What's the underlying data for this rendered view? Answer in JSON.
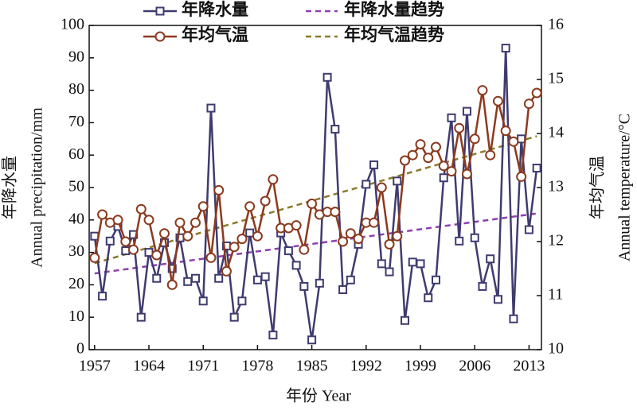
{
  "chart_data": {
    "type": "line",
    "xlabel": "年份  Year",
    "ylabel": [
      "年降水量",
      "Annual precipitation/mm"
    ],
    "y2label": [
      "年均气温",
      "Annual temperature/°C"
    ],
    "x": [
      1957,
      1958,
      1959,
      1960,
      1961,
      1962,
      1963,
      1964,
      1965,
      1966,
      1967,
      1968,
      1969,
      1970,
      1971,
      1972,
      1973,
      1974,
      1975,
      1976,
      1977,
      1978,
      1979,
      1980,
      1981,
      1982,
      1983,
      1984,
      1985,
      1986,
      1987,
      1988,
      1989,
      1990,
      1991,
      1992,
      1993,
      1994,
      1995,
      1996,
      1997,
      1998,
      1999,
      2000,
      2001,
      2002,
      2003,
      2004,
      2005,
      2006,
      2007,
      2008,
      2009,
      2010,
      2011,
      2012,
      2013,
      2014
    ],
    "series": [
      {
        "name": "年降水量",
        "color": "#3f3b6f",
        "marker": "square",
        "values": [
          35,
          16.5,
          33.5,
          38,
          30.5,
          35.5,
          10,
          30,
          22,
          33,
          25,
          34.5,
          21,
          22,
          15,
          74.5,
          22,
          32,
          10,
          15,
          36,
          21.5,
          22.5,
          4.5,
          36,
          30.5,
          26,
          19.5,
          3,
          20.5,
          84,
          68,
          18.5,
          21.5,
          32.5,
          51,
          57,
          26.5,
          24,
          52,
          9,
          27,
          26.5,
          16,
          21.5,
          53,
          71.5,
          33.5,
          73.5,
          34.5,
          19.5,
          28,
          15.5,
          93,
          9.5,
          65,
          37,
          56
        ]
      },
      {
        "name": "年均气温",
        "color": "#8b3a1e",
        "marker": "circle",
        "axis": "y2",
        "values": [
          11.7,
          12.5,
          12.35,
          12.4,
          12.0,
          11.85,
          12.6,
          12.4,
          11.75,
          12.15,
          11.2,
          12.35,
          12.1,
          12.35,
          12.65,
          11.7,
          12.95,
          11.45,
          11.9,
          12.05,
          12.65,
          12.1,
          12.75,
          13.15,
          12.25,
          12.25,
          12.3,
          11.85,
          12.7,
          12.5,
          12.55,
          12.55,
          12.0,
          12.15,
          12.05,
          12.35,
          12.35,
          13.0,
          11.95,
          12.1,
          13.5,
          13.6,
          13.8,
          13.55,
          13.75,
          13.4,
          13.3,
          14.1,
          13.25,
          13.9,
          14.8,
          13.6,
          14.6,
          14.05,
          13.85,
          13.2,
          14.55,
          14.75
        ]
      }
    ],
    "trends": [
      {
        "name": "年降水量趋势",
        "color": "#8e3fae",
        "x": [
          1957,
          2014
        ],
        "values": [
          23.5,
          42
        ]
      },
      {
        "name": "年均气温趋势",
        "color": "#8b7a2a",
        "axis": "y2",
        "x": [
          1957,
          2014
        ],
        "values": [
          11.6,
          13.95
        ]
      }
    ],
    "xlim": [
      1956.3,
      2014.6
    ],
    "xticks": [
      1957,
      1964,
      1971,
      1978,
      1985,
      1992,
      1999,
      2006,
      2013
    ],
    "ylim": [
      0,
      100
    ],
    "yticks": [
      0,
      10,
      20,
      30,
      40,
      50,
      60,
      70,
      80,
      90,
      100
    ],
    "y2lim": [
      10,
      16
    ],
    "y2ticks": [
      10,
      11,
      12,
      13,
      14,
      15,
      16
    ]
  }
}
